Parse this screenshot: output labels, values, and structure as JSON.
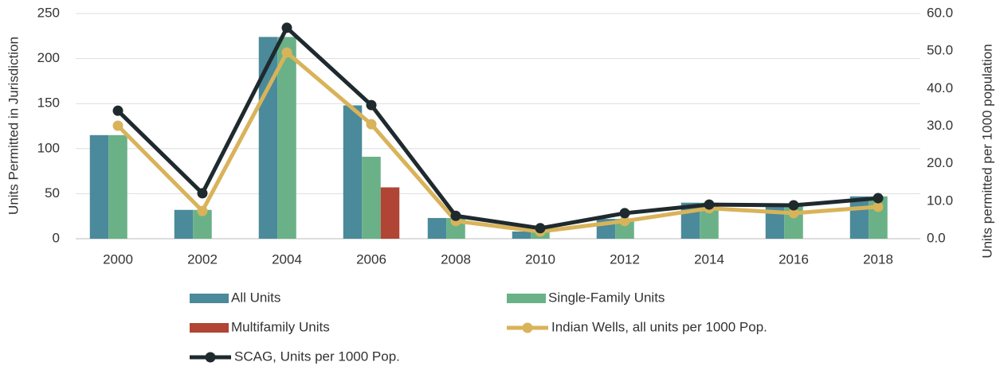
{
  "chart_data": {
    "type": "bar-line",
    "y_label": "Units Permitted in Jurisdiction",
    "y2_label": "Units permitted per 1000 population",
    "categories": [
      "2000",
      "2002",
      "2004",
      "2006",
      "2008",
      "2010",
      "2012",
      "2014",
      "2016",
      "2018"
    ],
    "series": [
      {
        "name": "All Units",
        "type": "bar",
        "color": "#4a8a9a",
        "values": [
          115,
          32,
          224,
          148,
          23,
          8,
          22,
          40,
          37,
          47
        ]
      },
      {
        "name": "Single-Family Units",
        "type": "bar",
        "color": "#6ab187",
        "values": [
          115,
          32,
          224,
          91,
          23,
          8,
          22,
          40,
          37,
          47
        ]
      },
      {
        "name": "Multifamily Units",
        "type": "bar",
        "color": "#b04435",
        "values": [
          0,
          0,
          0,
          57,
          0,
          0,
          0,
          0,
          0,
          0
        ]
      },
      {
        "name": "Indian Wells, all units per 1000 Pop.",
        "type": "line",
        "axis": "y2",
        "color": "#d9b35a",
        "values": [
          30.1,
          7.4,
          49.6,
          30.5,
          4.7,
          1.9,
          4.7,
          8.1,
          6.8,
          8.5
        ]
      },
      {
        "name": "SCAG, Units per 1000 Pop.",
        "type": "line",
        "axis": "y2",
        "color": "#1f2a2e",
        "values": [
          34.1,
          12.1,
          56.2,
          35.6,
          6.1,
          2.8,
          6.8,
          9.1,
          8.9,
          10.8
        ]
      }
    ],
    "ylim": [
      0,
      250
    ],
    "yticks": [
      0,
      50,
      100,
      150,
      200,
      250
    ],
    "y2lim": [
      0,
      60
    ],
    "y2ticks": [
      {
        "value": 0,
        "label": "0.0"
      },
      {
        "value": 10,
        "label": "10.0"
      },
      {
        "value": 20,
        "label": "20.0"
      },
      {
        "value": 30,
        "label": "30.0"
      },
      {
        "value": 40,
        "label": "40.0"
      },
      {
        "value": 50,
        "label": "50.0"
      },
      {
        "value": 60,
        "label": "60.0"
      }
    ],
    "grid": true,
    "legend": "bottom"
  }
}
